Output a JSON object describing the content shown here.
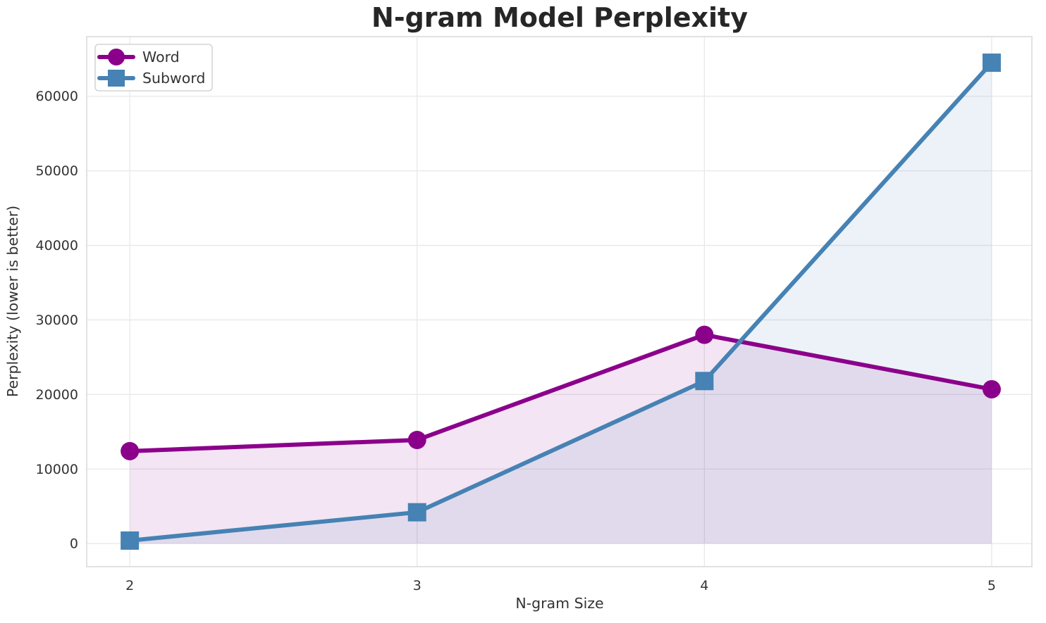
{
  "chart_data": {
    "type": "line",
    "title": "N-gram Model Perplexity",
    "xlabel": "N-gram Size",
    "ylabel": "Perplexity (lower is better)",
    "x": [
      2,
      3,
      4,
      5
    ],
    "x_tick_labels": [
      "2",
      "3",
      "4",
      "5"
    ],
    "y_ticks": [
      0,
      10000,
      20000,
      30000,
      40000,
      50000,
      60000
    ],
    "y_tick_labels": [
      "0",
      "10000",
      "20000",
      "30000",
      "40000",
      "50000",
      "60000"
    ],
    "xlim": [
      1.85,
      5.14
    ],
    "ylim": [
      -3100,
      68000
    ],
    "grid": true,
    "legend_position": "upper-left",
    "fill_to_zero": true,
    "fill_opacity": 0.1,
    "series": [
      {
        "name": "Word",
        "marker": "circle",
        "color": "#8B008B",
        "values": [
          12400,
          13900,
          28000,
          20700
        ]
      },
      {
        "name": "Subword",
        "marker": "square",
        "color": "#4682B4",
        "values": [
          400,
          4200,
          21800,
          64500
        ]
      }
    ]
  },
  "colors": {
    "background": "#FFFFFF",
    "grid": "#E8E8E8",
    "spine": "#D9D9D9",
    "tick_text": "#333333",
    "title_text": "#262626",
    "legend_border": "#CCCCCC",
    "legend_bg": "#FFFFFF"
  }
}
